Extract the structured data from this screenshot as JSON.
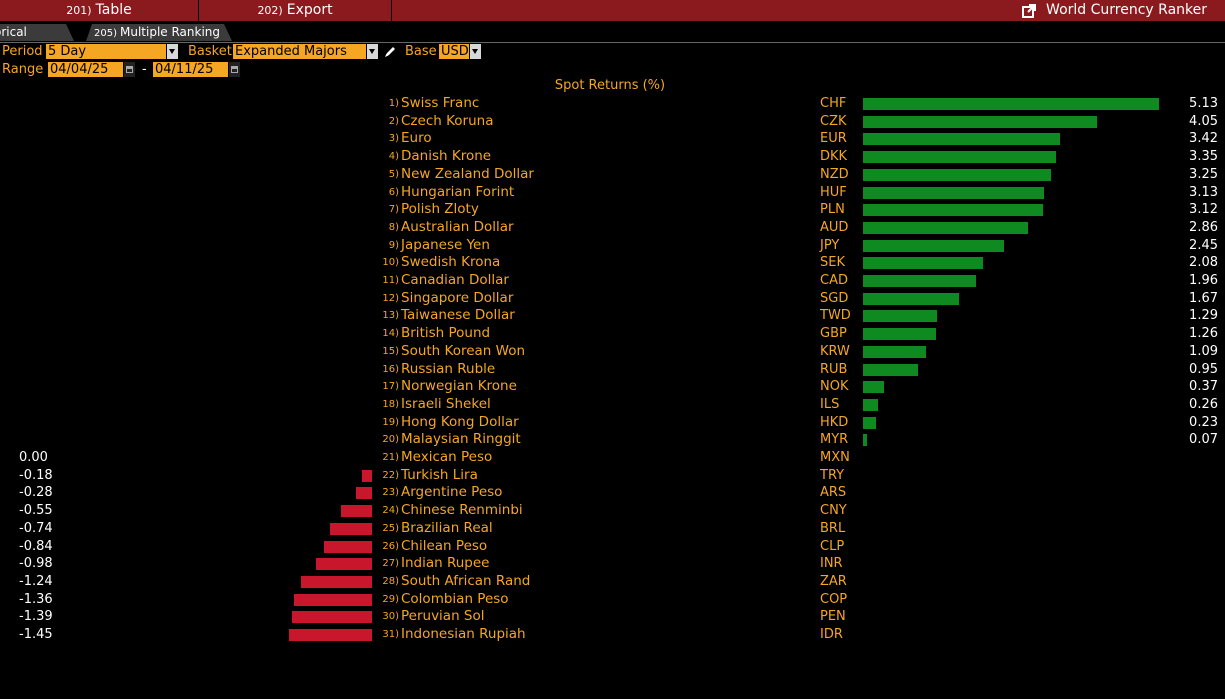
{
  "topbar": {
    "table_num": "201)",
    "table_label": "Table",
    "export_num": "202)",
    "export_label": "Export",
    "title": "World Currency Ranker"
  },
  "tabs": {
    "historical": "orical Ranking",
    "multiple_num": "205)",
    "multiple": "Multiple Ranking"
  },
  "controls": {
    "period_label": "Period",
    "period_value": "5 Day",
    "basket_label": "Basket",
    "basket_value": "Expanded Majors",
    "base_label": "Base",
    "base_value": "USD",
    "range_label": "Range",
    "range_start": "04/04/25",
    "range_sep": "-",
    "range_end": "04/11/25"
  },
  "colors": {
    "positive": "#0f8a21",
    "negative": "#c8162d",
    "accent": "#f5a623",
    "menubar": "#8b1a1f"
  },
  "chart_data": {
    "type": "bar",
    "title": "Spot Returns (%)",
    "ranks": [
      "1)",
      "2)",
      "3)",
      "4)",
      "5)",
      "6)",
      "7)",
      "8)",
      "9)",
      "10)",
      "11)",
      "12)",
      "13)",
      "14)",
      "15)",
      "16)",
      "17)",
      "18)",
      "19)",
      "20)",
      "21)",
      "22)",
      "23)",
      "24)",
      "25)",
      "26)",
      "27)",
      "28)",
      "29)",
      "30)",
      "31)"
    ],
    "categories": [
      "Swiss Franc",
      "Czech Koruna",
      "Euro",
      "Danish Krone",
      "New Zealand Dollar",
      "Hungarian Forint",
      "Polish Zloty",
      "Australian Dollar",
      "Japanese Yen",
      "Swedish Krona",
      "Canadian Dollar",
      "Singapore Dollar",
      "Taiwanese Dollar",
      "British Pound",
      "South Korean Won",
      "Russian Ruble",
      "Norwegian Krone",
      "Israeli Shekel",
      "Hong Kong Dollar",
      "Malaysian Ringgit",
      "Mexican Peso",
      "Turkish Lira",
      "Argentine Peso",
      "Chinese Renminbi",
      "Brazilian Real",
      "Chilean Peso",
      "Indian Rupee",
      "South African Rand",
      "Colombian Peso",
      "Peruvian Sol",
      "Indonesian Rupiah"
    ],
    "codes": [
      "CHF",
      "CZK",
      "EUR",
      "DKK",
      "NZD",
      "HUF",
      "PLN",
      "AUD",
      "JPY",
      "SEK",
      "CAD",
      "SGD",
      "TWD",
      "GBP",
      "KRW",
      "RUB",
      "NOK",
      "ILS",
      "HKD",
      "MYR",
      "MXN",
      "TRY",
      "ARS",
      "CNY",
      "BRL",
      "CLP",
      "INR",
      "ZAR",
      "COP",
      "PEN",
      "IDR"
    ],
    "values": [
      5.13,
      4.05,
      3.42,
      3.35,
      3.25,
      3.13,
      3.12,
      2.86,
      2.45,
      2.08,
      1.96,
      1.67,
      1.29,
      1.26,
      1.09,
      0.95,
      0.37,
      0.26,
      0.23,
      0.07,
      0.0,
      -0.18,
      -0.28,
      -0.55,
      -0.74,
      -0.84,
      -0.98,
      -1.24,
      -1.36,
      -1.39,
      -1.45
    ],
    "value_labels": [
      "5.13",
      "4.05",
      "3.42",
      "3.35",
      "3.25",
      "3.13",
      "3.12",
      "2.86",
      "2.45",
      "2.08",
      "1.96",
      "1.67",
      "1.29",
      "1.26",
      "1.09",
      "0.95",
      "0.37",
      "0.26",
      "0.23",
      "0.07",
      "0.00",
      "-0.18",
      "-0.28",
      "-0.55",
      "-0.74",
      "-0.84",
      "-0.98",
      "-1.24",
      "-1.36",
      "-1.39",
      "-1.45"
    ]
  }
}
